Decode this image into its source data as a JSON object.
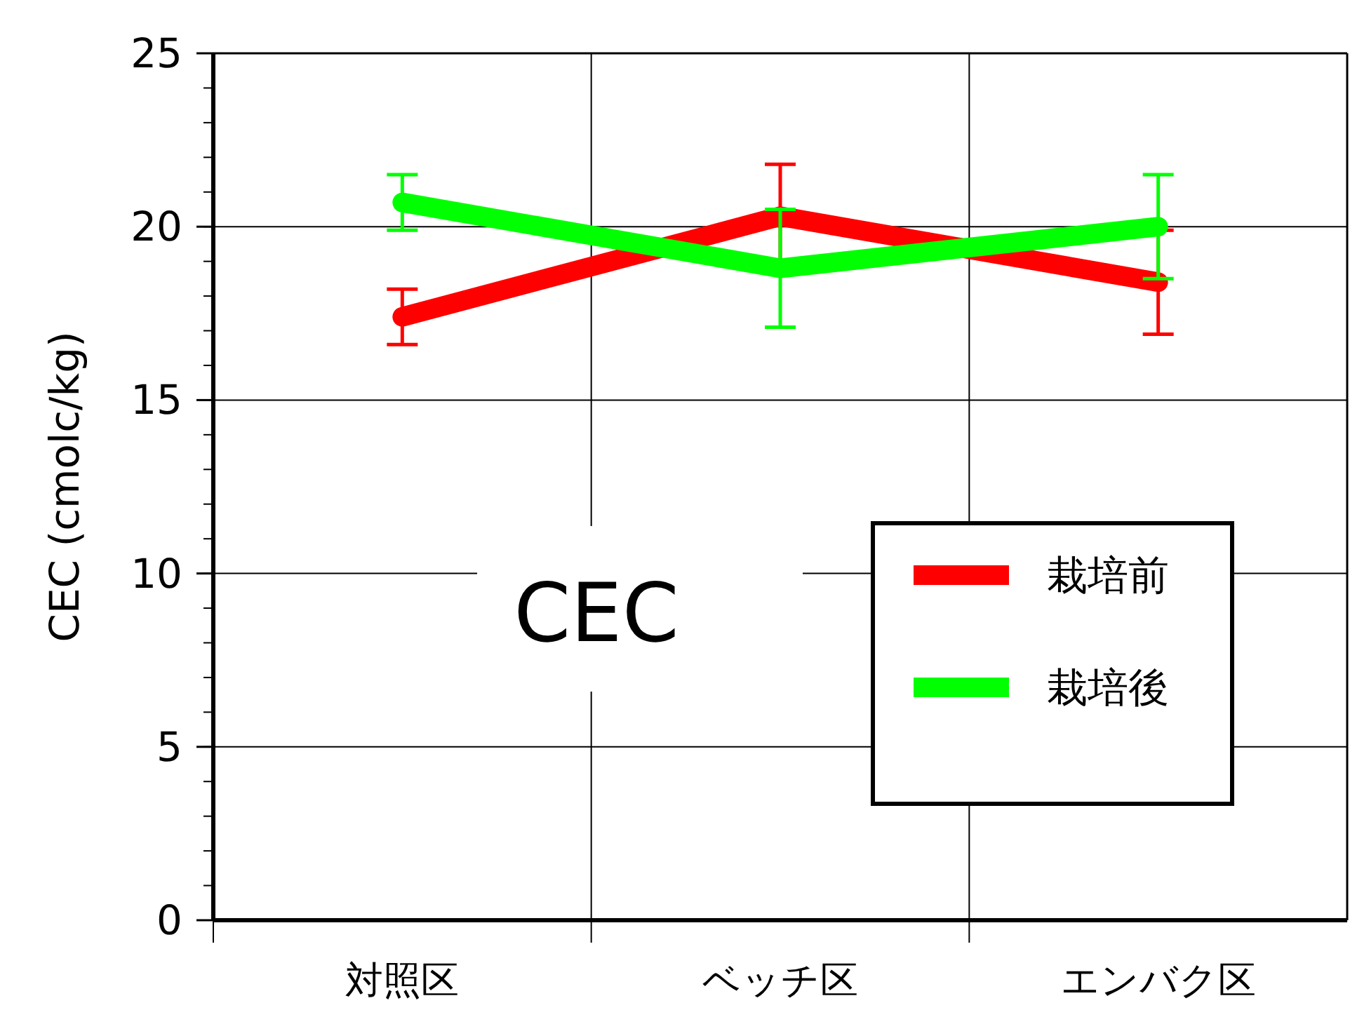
{
  "chart_data": {
    "type": "line",
    "title": "CEC",
    "ylabel": "CEC (cmolc/kg)",
    "categories": [
      "対照区",
      "ベッチ区",
      "エンバク区"
    ],
    "series": [
      {
        "name": "栽培前",
        "color": "#ff0000",
        "values": [
          17.4,
          20.3,
          18.4
        ],
        "errors": [
          0.8,
          1.5,
          1.5
        ]
      },
      {
        "name": "栽培後",
        "color": "#00ff00",
        "values": [
          20.7,
          18.8,
          20.0
        ],
        "errors": [
          0.8,
          1.7,
          1.5
        ]
      }
    ],
    "ylim": [
      0,
      25
    ],
    "yticks": [
      0,
      5,
      10,
      15,
      20,
      25
    ],
    "grid": true,
    "legend": "right",
    "line_style": "solid"
  }
}
